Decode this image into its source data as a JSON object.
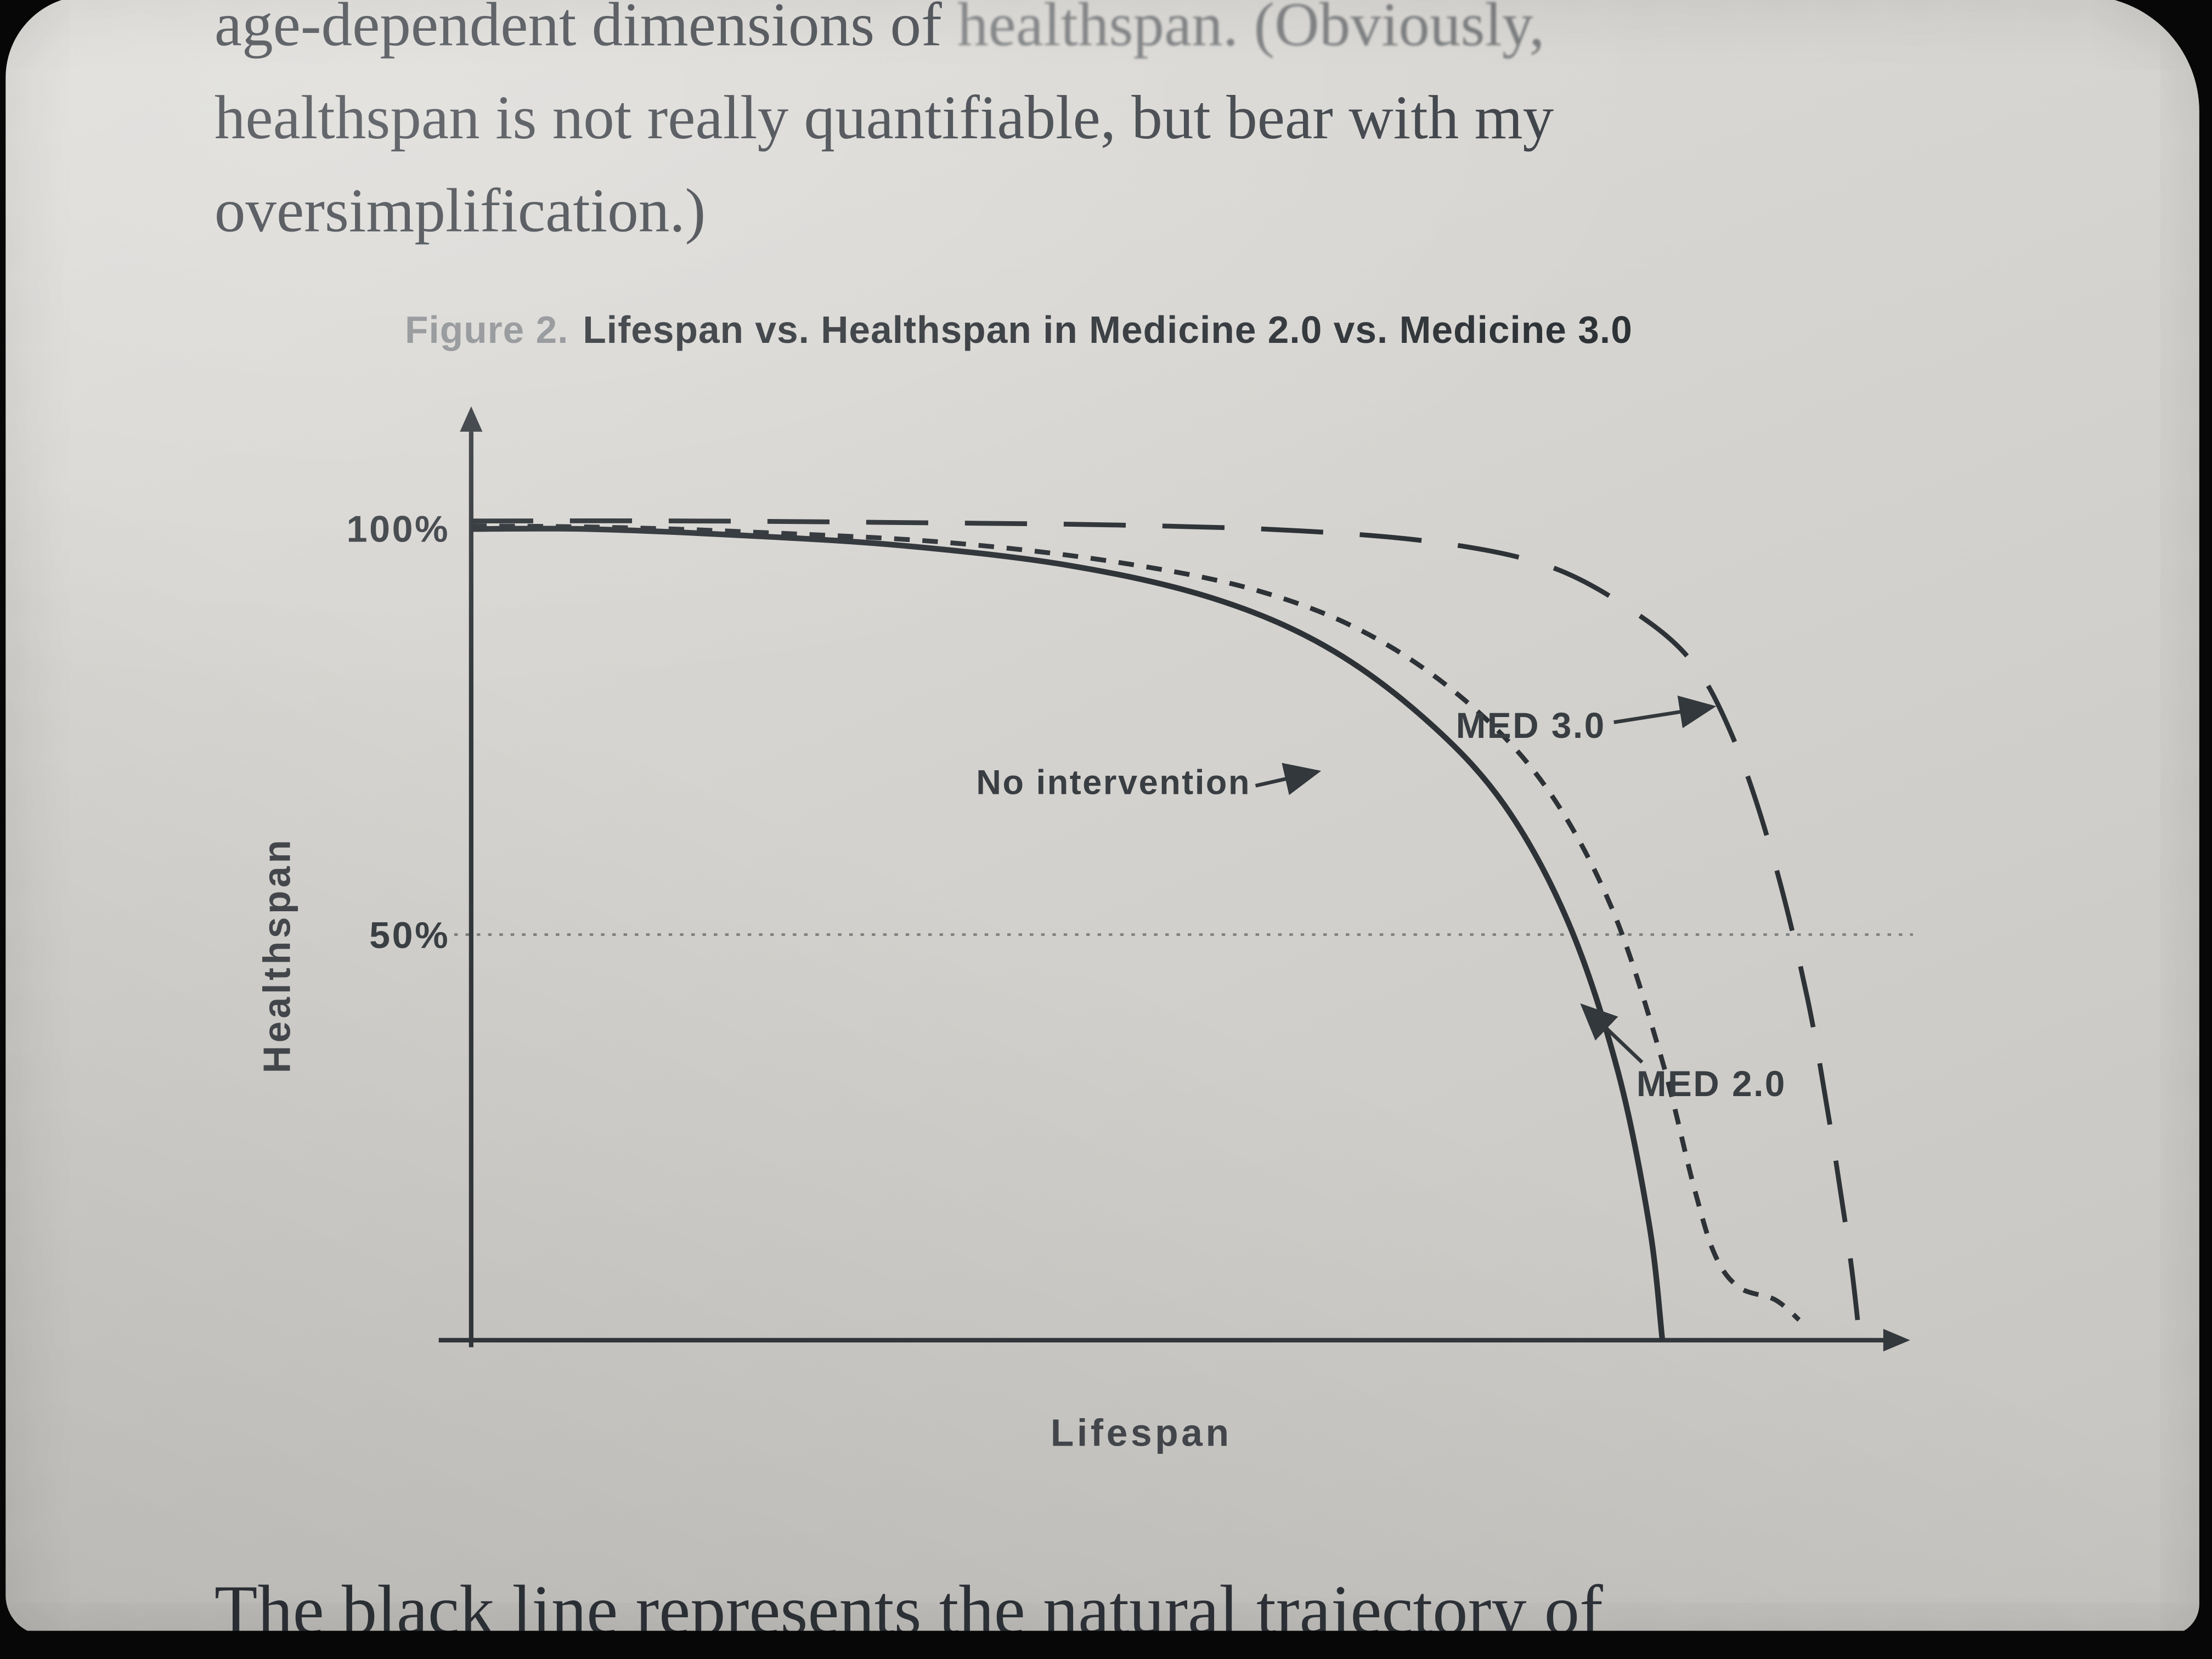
{
  "page": {
    "top_paragraph": {
      "line1_left": "age-dependent dimensions of ",
      "line1_right": "healthspan. (Obviously,",
      "line2": "healthspan is not really quantifiable, but bear with my",
      "line3": "oversimplification.)"
    },
    "bottom_paragraph": "The black line represents the natural trajectory of"
  },
  "figure": {
    "caption_prefix": "Figure 2.",
    "caption_title": "Lifespan vs. Healthspan in Medicine 2.0 vs. Medicine 3.0"
  },
  "chart_data": {
    "type": "line",
    "title": "Lifespan vs. Healthspan in Medicine 2.0 vs. Medicine 3.0",
    "xlabel": "Lifespan",
    "ylabel": "Healthspan",
    "x_axis": {
      "label": "Lifespan",
      "range_pct_of_axis": [
        0,
        100
      ],
      "ticks": []
    },
    "y_axis": {
      "label": "Healthspan",
      "range": [
        0,
        105
      ],
      "ticks": [
        {
          "value": 100,
          "label": "100%"
        },
        {
          "value": 50,
          "label": "50%"
        }
      ]
    },
    "grid": "off",
    "reference_lines": [
      {
        "axis": "y",
        "value": 50,
        "style": "dotted"
      }
    ],
    "legend_position": "inline annotations with arrows",
    "series": [
      {
        "name": "No intervention",
        "style": "solid",
        "x": [
          0,
          8,
          18,
          30,
          42,
          52,
          60,
          67,
          72.5,
          77,
          80.5,
          82.7,
          83.6
        ],
        "y": [
          100,
          100,
          99.3,
          98,
          95.5,
          91.5,
          85.5,
          76.5,
          66,
          51.5,
          33,
          14,
          0
        ]
      },
      {
        "name": "MED 2.0",
        "style": "short-dash",
        "x": [
          0,
          10,
          20,
          33,
          45,
          55,
          63,
          70,
          75.5,
          80,
          83.5,
          85.8,
          87.3,
          89,
          91.5,
          93.2
        ],
        "y": [
          100.4,
          100.2,
          99.6,
          98.4,
          96,
          92.5,
          87,
          78.5,
          68,
          53.5,
          35,
          19,
          10.5,
          6.5,
          5,
          2.5
        ]
      },
      {
        "name": "MED 3.0",
        "style": "long-dash",
        "x": [
          0,
          15,
          30,
          45,
          58,
          68,
          75.5,
          81,
          85.5,
          88.5,
          91.3,
          93.8,
          95.6,
          96.8,
          97.4
        ],
        "y": [
          101,
          101,
          100.8,
          100.5,
          99.8,
          98.3,
          95.5,
          90.5,
          84,
          74.5,
          60,
          42,
          24,
          10,
          1
        ]
      }
    ],
    "annotations": [
      {
        "label": "No intervention",
        "series": "No intervention"
      },
      {
        "label": "MED 3.0",
        "series": "MED 3.0"
      },
      {
        "label": "MED 2.0",
        "series": "MED 2.0"
      }
    ]
  }
}
